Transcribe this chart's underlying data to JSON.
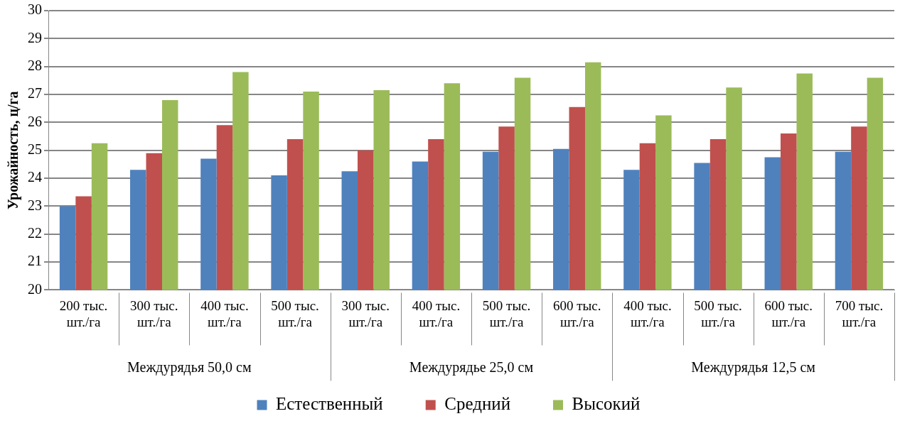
{
  "chart_data": {
    "type": "bar",
    "ylabel": "Урожайность, ц/га",
    "categories": [
      "200 тыс. шт./га",
      "300 тыс. шт./га",
      "400 тыс. шт./га",
      "500 тыс. шт./га",
      "300 тыс. шт./га",
      "400 тыс. шт./га",
      "500 тыс. шт./га",
      "600 тыс. шт./га",
      "400 тыс. шт./га",
      "500 тыс. шт./га",
      "600 тыс. шт./га",
      "700 тыс. шт./га"
    ],
    "series": [
      {
        "name": "Естественный",
        "color": "#4f81bd",
        "values": [
          23.0,
          24.3,
          24.7,
          24.1,
          24.25,
          24.6,
          24.95,
          25.05,
          24.3,
          24.55,
          24.75,
          24.95
        ]
      },
      {
        "name": "Средний",
        "color": "#c0504d",
        "values": [
          23.35,
          24.9,
          25.9,
          25.4,
          25.0,
          25.4,
          25.85,
          26.55,
          25.25,
          25.4,
          25.6,
          25.85
        ]
      },
      {
        "name": "Высокий",
        "color": "#9bbb59",
        "values": [
          25.25,
          26.8,
          27.8,
          27.1,
          27.15,
          27.4,
          27.6,
          28.15,
          26.25,
          27.25,
          27.75,
          27.6
        ]
      }
    ],
    "annotations": [
      "Междурядья 50,0 см",
      "Междурядье 25,0 см",
      "Междурядья 12,5 см"
    ],
    "ylim": [
      20,
      30
    ],
    "yticks": [
      20,
      21,
      22,
      23,
      24,
      25,
      26,
      27,
      28,
      29,
      30
    ],
    "grid": "y",
    "legend": "bottom"
  }
}
